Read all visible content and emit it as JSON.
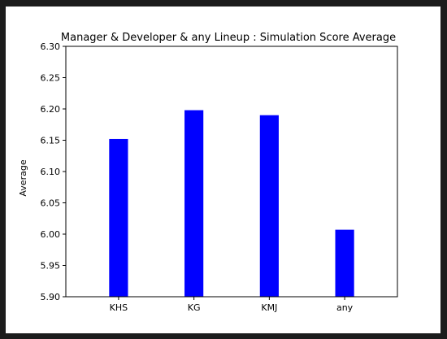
{
  "chart_data": {
    "type": "bar",
    "title": "Manager & Developer & any Lineup : Simulation Score Average",
    "xlabel": "",
    "ylabel": "Average",
    "categories": [
      "KHS",
      "KG",
      "KMJ",
      "any"
    ],
    "values": [
      6.152,
      6.198,
      6.19,
      6.007
    ],
    "ylim": [
      5.9,
      6.3
    ],
    "yticks": [
      "5.90",
      "5.95",
      "6.00",
      "6.05",
      "6.10",
      "6.15",
      "6.20",
      "6.25",
      "6.30"
    ],
    "bar_color": "#0000ff",
    "grid": false,
    "legend": "none"
  }
}
